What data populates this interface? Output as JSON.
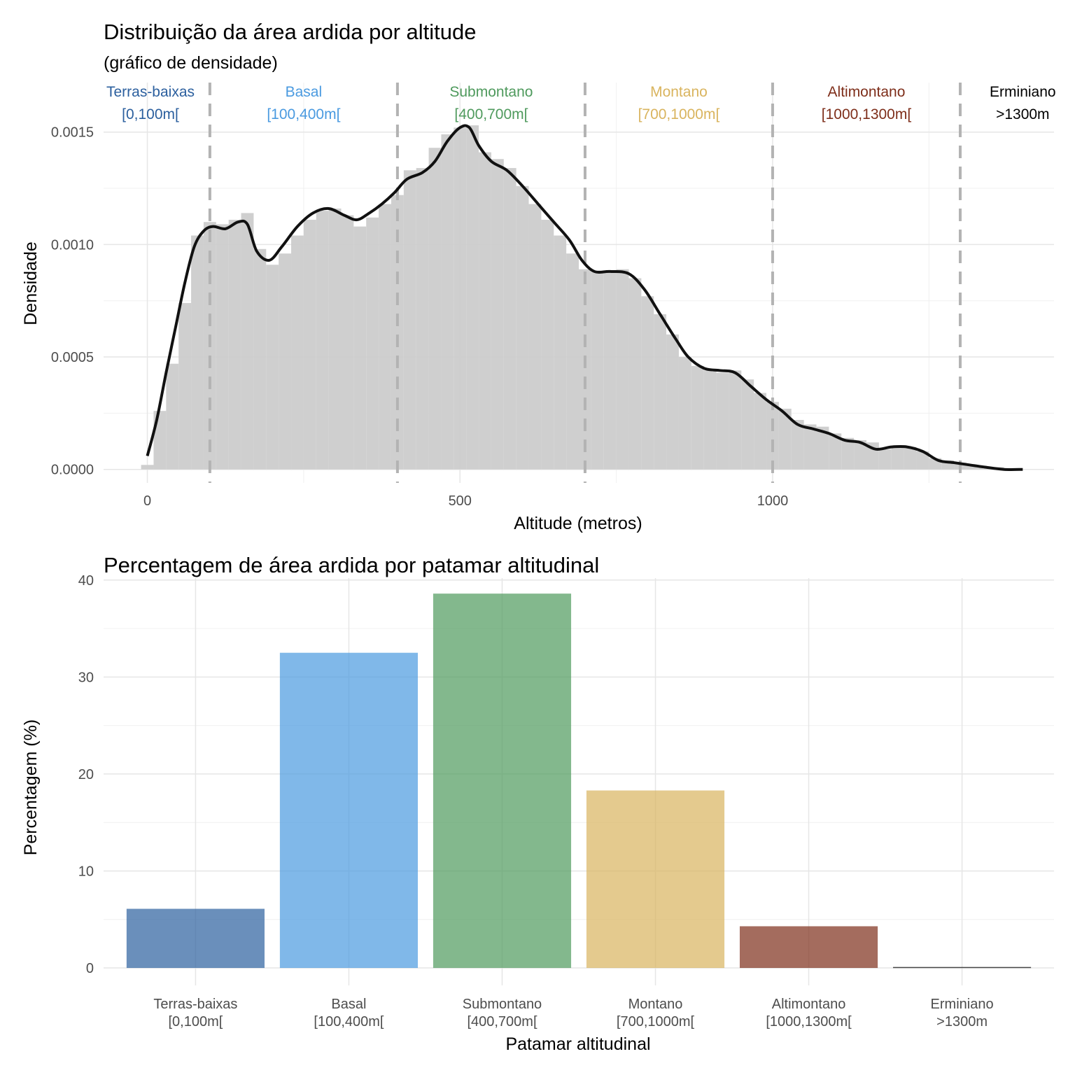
{
  "chart_data": [
    {
      "type": "area",
      "title": "Distribuição da área ardida por altitude",
      "subtitle": "(gráfico de densidade)",
      "xlabel": "Altitude (metros)",
      "ylabel": "Densidade",
      "xlim": [
        -70,
        1450
      ],
      "ylim": [
        -6e-05,
        0.00172
      ],
      "x_ticks": [
        {
          "value": 0,
          "label": "0"
        },
        {
          "value": 500,
          "label": "500"
        },
        {
          "value": 1000,
          "label": "1000"
        }
      ],
      "y_ticks": [
        {
          "value": 0,
          "label": "0.0000"
        },
        {
          "value": 0.0005,
          "label": "0.0005"
        },
        {
          "value": 0.001,
          "label": "0.0010"
        },
        {
          "value": 0.0015,
          "label": "0.0015"
        }
      ],
      "grid": true,
      "histogram": {
        "bin_width": 25,
        "fill": "#cccccc",
        "bins": [
          {
            "x0": -10,
            "x1": 10,
            "density": 2e-05
          },
          {
            "x0": 10,
            "x1": 30,
            "density": 0.00026
          },
          {
            "x0": 30,
            "x1": 50,
            "density": 0.00047
          },
          {
            "x0": 50,
            "x1": 70,
            "density": 0.00074
          },
          {
            "x0": 70,
            "x1": 90,
            "density": 0.00104
          },
          {
            "x0": 90,
            "x1": 110,
            "density": 0.0011
          },
          {
            "x0": 110,
            "x1": 130,
            "density": 0.00109
          },
          {
            "x0": 130,
            "x1": 150,
            "density": 0.00111
          },
          {
            "x0": 150,
            "x1": 170,
            "density": 0.00114
          },
          {
            "x0": 170,
            "x1": 190,
            "density": 0.00098
          },
          {
            "x0": 190,
            "x1": 210,
            "density": 0.00091
          },
          {
            "x0": 210,
            "x1": 230,
            "density": 0.00096
          },
          {
            "x0": 230,
            "x1": 250,
            "density": 0.00104
          },
          {
            "x0": 250,
            "x1": 270,
            "density": 0.00111
          },
          {
            "x0": 270,
            "x1": 290,
            "density": 0.00115
          },
          {
            "x0": 290,
            "x1": 310,
            "density": 0.00116
          },
          {
            "x0": 310,
            "x1": 330,
            "density": 0.00113
          },
          {
            "x0": 330,
            "x1": 350,
            "density": 0.00108
          },
          {
            "x0": 350,
            "x1": 370,
            "density": 0.00112
          },
          {
            "x0": 370,
            "x1": 390,
            "density": 0.00118
          },
          {
            "x0": 390,
            "x1": 410,
            "density": 0.00122
          },
          {
            "x0": 410,
            "x1": 430,
            "density": 0.00133
          },
          {
            "x0": 430,
            "x1": 450,
            "density": 0.00134
          },
          {
            "x0": 450,
            "x1": 470,
            "density": 0.00143
          },
          {
            "x0": 470,
            "x1": 490,
            "density": 0.00149
          },
          {
            "x0": 490,
            "x1": 510,
            "density": 0.00152
          },
          {
            "x0": 510,
            "x1": 530,
            "density": 0.00153
          },
          {
            "x0": 530,
            "x1": 550,
            "density": 0.00141
          },
          {
            "x0": 550,
            "x1": 570,
            "density": 0.00138
          },
          {
            "x0": 570,
            "x1": 590,
            "density": 0.00134
          },
          {
            "x0": 590,
            "x1": 610,
            "density": 0.00126
          },
          {
            "x0": 610,
            "x1": 630,
            "density": 0.00118
          },
          {
            "x0": 630,
            "x1": 650,
            "density": 0.00111
          },
          {
            "x0": 650,
            "x1": 670,
            "density": 0.00104
          },
          {
            "x0": 670,
            "x1": 690,
            "density": 0.00096
          },
          {
            "x0": 690,
            "x1": 710,
            "density": 0.00089
          },
          {
            "x0": 710,
            "x1": 730,
            "density": 0.00088
          },
          {
            "x0": 730,
            "x1": 750,
            "density": 0.00088
          },
          {
            "x0": 750,
            "x1": 770,
            "density": 0.00089
          },
          {
            "x0": 770,
            "x1": 790,
            "density": 0.00085
          },
          {
            "x0": 790,
            "x1": 810,
            "density": 0.00077
          },
          {
            "x0": 810,
            "x1": 830,
            "density": 0.00069
          },
          {
            "x0": 830,
            "x1": 850,
            "density": 0.0006
          },
          {
            "x0": 850,
            "x1": 870,
            "density": 0.0005
          },
          {
            "x0": 870,
            "x1": 890,
            "density": 0.00046
          },
          {
            "x0": 890,
            "x1": 910,
            "density": 0.00044
          },
          {
            "x0": 910,
            "x1": 930,
            "density": 0.00043
          },
          {
            "x0": 930,
            "x1": 950,
            "density": 0.00044
          },
          {
            "x0": 950,
            "x1": 970,
            "density": 0.0004
          },
          {
            "x0": 970,
            "x1": 990,
            "density": 0.00034
          },
          {
            "x0": 990,
            "x1": 1010,
            "density": 0.0003
          },
          {
            "x0": 1010,
            "x1": 1030,
            "density": 0.00027
          },
          {
            "x0": 1030,
            "x1": 1050,
            "density": 0.00022
          },
          {
            "x0": 1050,
            "x1": 1070,
            "density": 0.0002
          },
          {
            "x0": 1070,
            "x1": 1090,
            "density": 0.00019
          },
          {
            "x0": 1090,
            "x1": 1110,
            "density": 0.00016
          },
          {
            "x0": 1110,
            "x1": 1130,
            "density": 0.00014
          },
          {
            "x0": 1130,
            "x1": 1150,
            "density": 0.00013
          },
          {
            "x0": 1150,
            "x1": 1170,
            "density": 0.00012
          },
          {
            "x0": 1170,
            "x1": 1190,
            "density": 9e-05
          },
          {
            "x0": 1190,
            "x1": 1210,
            "density": 0.0001
          },
          {
            "x0": 1210,
            "x1": 1230,
            "density": 0.0001
          },
          {
            "x0": 1230,
            "x1": 1250,
            "density": 8e-05
          },
          {
            "x0": 1250,
            "x1": 1270,
            "density": 5e-05
          },
          {
            "x0": 1270,
            "x1": 1290,
            "density": 4e-05
          },
          {
            "x0": 1290,
            "x1": 1310,
            "density": 3e-05
          },
          {
            "x0": 1310,
            "x1": 1330,
            "density": 2e-05
          },
          {
            "x0": 1330,
            "x1": 1350,
            "density": 1e-05
          },
          {
            "x0": 1350,
            "x1": 1370,
            "density": 1e-05
          },
          {
            "x0": 1370,
            "x1": 1400,
            "density": 0.0
          }
        ]
      },
      "density_curve": {
        "color": "#111111",
        "points": [
          [
            0,
            6e-05
          ],
          [
            15,
            0.00022
          ],
          [
            30,
            0.00043
          ],
          [
            45,
            0.00063
          ],
          [
            60,
            0.00083
          ],
          [
            75,
            0.00099
          ],
          [
            90,
            0.00106
          ],
          [
            105,
            0.00108
          ],
          [
            125,
            0.00107
          ],
          [
            145,
            0.0011
          ],
          [
            160,
            0.00109
          ],
          [
            175,
            0.00097
          ],
          [
            195,
            0.00093
          ],
          [
            215,
            0.00099
          ],
          [
            240,
            0.00108
          ],
          [
            265,
            0.00114
          ],
          [
            290,
            0.00116
          ],
          [
            315,
            0.00113
          ],
          [
            335,
            0.00111
          ],
          [
            355,
            0.00114
          ],
          [
            375,
            0.00118
          ],
          [
            395,
            0.00123
          ],
          [
            415,
            0.00129
          ],
          [
            440,
            0.00132
          ],
          [
            460,
            0.00137
          ],
          [
            480,
            0.00146
          ],
          [
            500,
            0.00152
          ],
          [
            515,
            0.00152
          ],
          [
            530,
            0.00144
          ],
          [
            550,
            0.00137
          ],
          [
            575,
            0.00133
          ],
          [
            600,
            0.00126
          ],
          [
            625,
            0.00118
          ],
          [
            650,
            0.0011
          ],
          [
            675,
            0.00102
          ],
          [
            695,
            0.00093
          ],
          [
            715,
            0.00088
          ],
          [
            740,
            0.00088
          ],
          [
            770,
            0.00087
          ],
          [
            795,
            0.0008
          ],
          [
            820,
            0.00069
          ],
          [
            845,
            0.00058
          ],
          [
            865,
            0.0005
          ],
          [
            890,
            0.00045
          ],
          [
            915,
            0.00044
          ],
          [
            940,
            0.00043
          ],
          [
            965,
            0.00037
          ],
          [
            990,
            0.00031
          ],
          [
            1015,
            0.00026
          ],
          [
            1040,
            0.0002
          ],
          [
            1065,
            0.00018
          ],
          [
            1090,
            0.00016
          ],
          [
            1115,
            0.00013
          ],
          [
            1140,
            0.00012
          ],
          [
            1165,
            9e-05
          ],
          [
            1190,
            0.0001
          ],
          [
            1215,
            0.0001
          ],
          [
            1240,
            8e-05
          ],
          [
            1265,
            4e-05
          ],
          [
            1290,
            3e-05
          ],
          [
            1315,
            2e-05
          ],
          [
            1340,
            1e-05
          ],
          [
            1370,
            0.0
          ],
          [
            1400,
            0.0
          ]
        ]
      },
      "vlines": [
        {
          "x": 100,
          "style": "dashed",
          "color": "#b3b3b3"
        },
        {
          "x": 400,
          "style": "dashed",
          "color": "#b3b3b3"
        },
        {
          "x": 700,
          "style": "dashed",
          "color": "#b3b3b3"
        },
        {
          "x": 1000,
          "style": "dashed",
          "color": "#b3b3b3"
        },
        {
          "x": 1300,
          "style": "dashed",
          "color": "#b3b3b3"
        }
      ],
      "zone_annotations": [
        {
          "name": "Terras-baixas",
          "range": "[0,100m[",
          "x": 5,
          "color": "#2b5f9e"
        },
        {
          "name": "Basal",
          "range": "[100,400m[",
          "x": 250,
          "color": "#4a9ae0"
        },
        {
          "name": "Submontano",
          "range": "[400,700m[",
          "x": 550,
          "color": "#4f9a5d"
        },
        {
          "name": "Montano",
          "range": "[700,1000m[",
          "x": 850,
          "color": "#d9b45e"
        },
        {
          "name": "Altimontano",
          "range": "[1000,1300m[",
          "x": 1150,
          "color": "#7e2e1a"
        },
        {
          "name": "Erminiano",
          "range": ">1300m",
          "x": 1400,
          "color": "#000000"
        }
      ]
    },
    {
      "type": "bar",
      "title": "Percentagem de área ardida por patamar altitudinal",
      "xlabel": "Patamar altitudinal",
      "ylabel": "Percentagem (%)",
      "ylim": [
        -1.8,
        40.2
      ],
      "y_ticks": [
        {
          "value": 0,
          "label": "0"
        },
        {
          "value": 10,
          "label": "10"
        },
        {
          "value": 20,
          "label": "20"
        },
        {
          "value": 30,
          "label": "30"
        },
        {
          "value": 40,
          "label": "40"
        }
      ],
      "grid": true,
      "categories": [
        {
          "name": "Terras-baixas",
          "range": "[0,100m[",
          "value": 6.1,
          "color": "#2b5f9e"
        },
        {
          "name": "Basal",
          "range": "[100,400m[",
          "value": 32.5,
          "color": "#4a9ae0"
        },
        {
          "name": "Submontano",
          "range": "[400,700m[",
          "value": 38.6,
          "color": "#4f9a5d"
        },
        {
          "name": "Montano",
          "range": "[700,1000m[",
          "value": 18.3,
          "color": "#d9b45e"
        },
        {
          "name": "Altimontano",
          "range": "[1000,1300m[",
          "value": 4.3,
          "color": "#7e2e1a"
        },
        {
          "name": "Erminiano",
          "range": ">1300m",
          "value": 0.1,
          "color": "#000000"
        }
      ]
    }
  ]
}
